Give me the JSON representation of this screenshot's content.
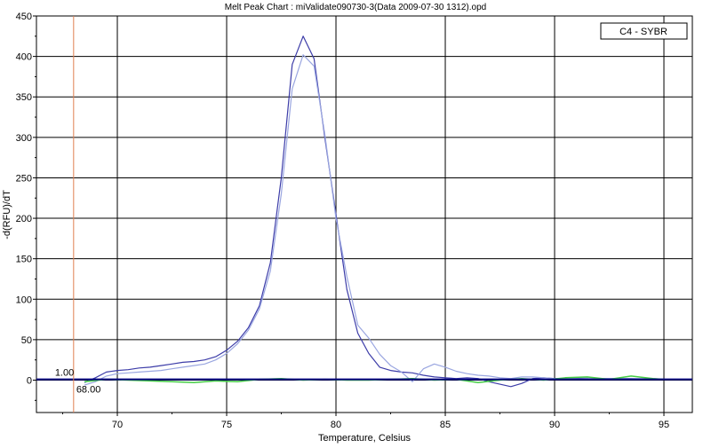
{
  "chart_data": {
    "type": "line",
    "title": "Melt Peak Chart : miValidate090730-3(Data 2009-07-30 1312).opd",
    "xlabel": "Temperature, Celsius",
    "ylabel": "-d(RFU)/dT",
    "xlim": [
      66.3,
      96.3
    ],
    "ylim": [
      -40,
      450
    ],
    "x_ticks": [
      70,
      75,
      80,
      85,
      90,
      95
    ],
    "y_ticks": [
      0,
      50,
      100,
      150,
      200,
      250,
      300,
      350,
      400,
      450
    ],
    "x_tick_labels": [
      "70",
      "75",
      "80",
      "85",
      "90",
      "95"
    ],
    "y_tick_labels": [
      "0",
      "50",
      "100",
      "150",
      "200",
      "250",
      "300",
      "350",
      "400",
      "450"
    ],
    "grid": true,
    "legend": {
      "placement": "top-right",
      "entries": [
        "C4 - SYBR"
      ]
    },
    "threshold": {
      "value": 1.0,
      "label": "1.00",
      "color": "#000080"
    },
    "cursor": {
      "x": 68.0,
      "label": "68.00",
      "color": "#e08050"
    },
    "colors": {
      "background": "#ffffff",
      "grid": "#000000",
      "series_dark": "#3c3ca8",
      "series_light": "#9aa6e0",
      "series_green": "#44cc44"
    },
    "series": [
      {
        "color": "#3c3ca8",
        "x": [
          68.5,
          69.0,
          69.5,
          70.0,
          70.5,
          71.0,
          71.5,
          72.0,
          72.5,
          73.0,
          73.5,
          74.0,
          74.5,
          75.0,
          75.5,
          76.0,
          76.5,
          77.0,
          77.5,
          78.0,
          78.5,
          79.0,
          79.5,
          80.0,
          80.5,
          81.0,
          81.5,
          82.0,
          82.5,
          83.0,
          83.5,
          84.0,
          84.5,
          85.0,
          85.5,
          86.0,
          86.5,
          87.0,
          87.5,
          88.0,
          88.5,
          89.0,
          89.5,
          90.0,
          90.5,
          91.0,
          91.5,
          92.0,
          92.5,
          93.0,
          93.5,
          94.0,
          94.5,
          95.0
        ],
        "y": [
          -3,
          3,
          10,
          12,
          13,
          15,
          16,
          18,
          20,
          22,
          23,
          25,
          29,
          37,
          48,
          65,
          92,
          145,
          250,
          390,
          425,
          397,
          298,
          205,
          112,
          58,
          33,
          16,
          12,
          10,
          9,
          6,
          4,
          3,
          2,
          3,
          2,
          -2,
          -5,
          -8,
          -4,
          2,
          3,
          2,
          2,
          2,
          3,
          2,
          2,
          2,
          2,
          1,
          1,
          1
        ]
      },
      {
        "color": "#9aa6e0",
        "x": [
          68.5,
          69.0,
          69.5,
          70.0,
          70.5,
          71.0,
          71.5,
          72.0,
          72.5,
          73.0,
          73.5,
          74.0,
          74.5,
          75.0,
          75.5,
          76.0,
          76.5,
          77.0,
          77.5,
          78.0,
          78.5,
          79.0,
          79.5,
          80.0,
          80.5,
          81.0,
          81.5,
          82.0,
          82.5,
          83.0,
          83.5,
          84.0,
          84.5,
          85.0,
          85.5,
          86.0,
          86.5,
          87.0,
          87.5,
          88.0,
          88.5,
          89.0,
          89.5,
          90.0,
          90.5,
          91.0,
          91.5,
          92.0,
          92.5,
          93.0,
          93.5,
          94.0,
          94.5,
          95.0
        ],
        "y": [
          -6,
          -2,
          5,
          8,
          9,
          10,
          11,
          12,
          14,
          16,
          18,
          20,
          25,
          33,
          45,
          62,
          88,
          135,
          230,
          360,
          402,
          388,
          302,
          200,
          128,
          68,
          52,
          32,
          18,
          10,
          -2,
          14,
          20,
          16,
          11,
          8,
          6,
          5,
          3,
          2,
          4,
          4,
          3,
          2,
          2,
          3,
          3,
          2,
          2,
          2,
          2,
          2,
          2,
          1
        ]
      },
      {
        "color": "#44cc44",
        "x": [
          68.5,
          69.5,
          70.5,
          71.5,
          72.5,
          73.5,
          74.5,
          75.5,
          76.5,
          77.5,
          78.5,
          79.5,
          80.5,
          81.5,
          82.5,
          83.5,
          84.5,
          85.5,
          86.5,
          87.5,
          88.5,
          89.5,
          90.5,
          91.5,
          92.5,
          93.5,
          94.5,
          95.0
        ],
        "y": [
          -2,
          1,
          0,
          -1,
          -2,
          -3,
          -1,
          -2,
          1,
          2,
          0,
          1,
          0,
          0,
          1,
          2,
          0,
          1,
          -3,
          0,
          2,
          0,
          3,
          4,
          1,
          5,
          2,
          1
        ]
      }
    ]
  }
}
